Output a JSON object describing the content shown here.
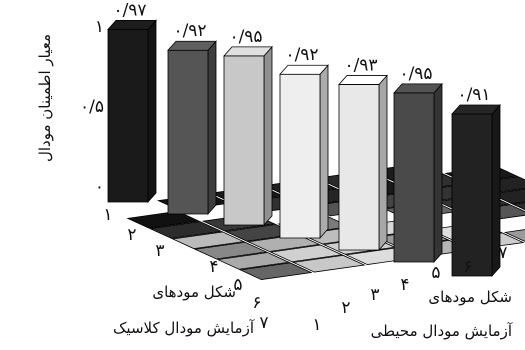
{
  "chart_data": {
    "type": "bar3d",
    "title": "",
    "zlabel": "معیار اطمینان مودال",
    "zticks": [
      "۱",
      "۰/۵",
      "۰"
    ],
    "zlim": [
      0,
      1
    ],
    "xlabel": [
      "شکل مودهای",
      "آزمایش مودال کلاسیک"
    ],
    "ylabel": [
      "شکل مودهای",
      "آزمایش مودال محیطی"
    ],
    "x_ticks": [
      "۱",
      "۲",
      "۳",
      "۴",
      "۵",
      "۶",
      "۷"
    ],
    "y_ticks": [
      "۱",
      "۲",
      "۳",
      "۴",
      "۵",
      "۶",
      "۷"
    ],
    "diagonal_values": [
      0.97,
      0.92,
      0.95,
      0.92,
      0.93,
      0.95,
      0.91
    ],
    "diagonal_labels": [
      "۰/۹۷",
      "۰/۹۲",
      "۰/۹۵",
      "۰/۹۲",
      "۰/۹۳",
      "۰/۹۵",
      "۰/۹۱"
    ],
    "diagonal_colors": [
      "#1a1a1a",
      "#555555",
      "#c8c8c8",
      "#eeeeee",
      "#e8e8e8",
      "#4a4a4a",
      "#222222"
    ],
    "floor_cells": [
      {
        "i": 1,
        "j": 2,
        "value": 0.0,
        "color": "#151515"
      },
      {
        "i": 1,
        "j": 3,
        "value": 0.0,
        "color": "#1a1a1a"
      },
      {
        "i": 1,
        "j": 4,
        "value": 0.0,
        "color": "#222222"
      },
      {
        "i": 1,
        "j": 5,
        "value": 0.0,
        "color": "#2a2a2a"
      },
      {
        "i": 1,
        "j": 6,
        "value": 0.0,
        "color": "#1d1d1d"
      },
      {
        "i": 2,
        "j": 1,
        "value": 0.0,
        "color": "#111111"
      },
      {
        "i": 2,
        "j": 3,
        "value": 0.0,
        "color": "#303030"
      },
      {
        "i": 2,
        "j": 4,
        "value": 0.0,
        "color": "#262626"
      },
      {
        "i": 2,
        "j": 5,
        "value": 0.0,
        "color": "#1a1a1a"
      },
      {
        "i": 2,
        "j": 6,
        "value": 0.0,
        "color": "#303030"
      },
      {
        "i": 2,
        "j": 7,
        "value": 0.0,
        "color": "#1a1a1a"
      },
      {
        "i": 3,
        "j": 1,
        "value": 0.0,
        "color": "#2c2c2c"
      },
      {
        "i": 3,
        "j": 2,
        "value": 0.0,
        "color": "#383838"
      },
      {
        "i": 3,
        "j": 4,
        "value": 0.0,
        "color": "#555555"
      },
      {
        "i": 3,
        "j": 5,
        "value": 0.0,
        "color": "#444444"
      },
      {
        "i": 3,
        "j": 6,
        "value": 0.0,
        "color": "#333333"
      },
      {
        "i": 3,
        "j": 7,
        "value": 0.0,
        "color": "#222222"
      },
      {
        "i": 4,
        "j": 1,
        "value": 0.0,
        "color": "#bbbbbb"
      },
      {
        "i": 4,
        "j": 2,
        "value": 0.0,
        "color": "#444444"
      },
      {
        "i": 4,
        "j": 3,
        "value": 0.0,
        "color": "#7a7a7a"
      },
      {
        "i": 4,
        "j": 5,
        "value": 0.0,
        "color": "#666666"
      },
      {
        "i": 4,
        "j": 6,
        "value": 0.0,
        "color": "#333333"
      },
      {
        "i": 4,
        "j": 7,
        "value": 0.0,
        "color": "#222222"
      },
      {
        "i": 5,
        "j": 1,
        "value": 0.0,
        "color": "#888888"
      },
      {
        "i": 5,
        "j": 2,
        "value": 0.0,
        "color": "#b0b0b0"
      },
      {
        "i": 5,
        "j": 3,
        "value": 0.0,
        "color": "#bdbdbd"
      },
      {
        "i": 5,
        "j": 4,
        "value": 0.0,
        "color": "#d8d8d8"
      },
      {
        "i": 5,
        "j": 6,
        "value": 0.0,
        "color": "#555555"
      },
      {
        "i": 5,
        "j": 7,
        "value": 0.0,
        "color": "#2a2a2a"
      },
      {
        "i": 6,
        "j": 1,
        "value": 0.0,
        "color": "#aaaaaa"
      },
      {
        "i": 6,
        "j": 2,
        "value": 0.0,
        "color": "#d0d0d0"
      },
      {
        "i": 6,
        "j": 3,
        "value": 0.0,
        "color": "#cfcfcf"
      },
      {
        "i": 6,
        "j": 4,
        "value": 0.0,
        "color": "#9a9a9a"
      },
      {
        "i": 6,
        "j": 5,
        "value": 0.0,
        "color": "#e0e0e0"
      },
      {
        "i": 6,
        "j": 7,
        "value": 0.03,
        "color": "#888888"
      },
      {
        "i": 7,
        "j": 1,
        "value": 0.0,
        "color": "#666666"
      },
      {
        "i": 7,
        "j": 2,
        "value": 0.0,
        "color": "#c8c8c8"
      },
      {
        "i": 7,
        "j": 3,
        "value": 0.0,
        "color": "#dddddd"
      },
      {
        "i": 7,
        "j": 4,
        "value": 0.0,
        "color": "#b5b5b5"
      },
      {
        "i": 7,
        "j": 5,
        "value": 0.0,
        "color": "#cccccc"
      },
      {
        "i": 7,
        "j": 6,
        "value": 0.0,
        "color": "#9a9a9a"
      }
    ],
    "grid": false,
    "legend": "none"
  }
}
